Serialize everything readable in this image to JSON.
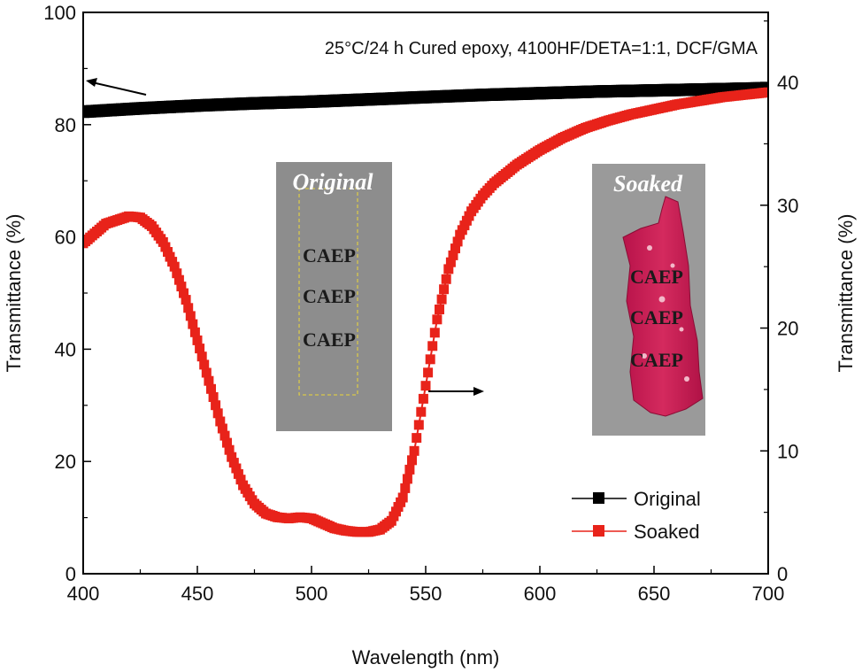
{
  "chart_data": {
    "type": "line",
    "annotation": "25°C/24 h Cured epoxy, 4100HF/DETA=1:1, DCF/GMA",
    "xlabel": "Wavelength (nm)",
    "ylabel_left": "Transmittance (%)",
    "ylabel_right": "Transmittance (%)",
    "xlim": [
      400,
      700
    ],
    "ylim_left": [
      0,
      100
    ],
    "ylim_right": [
      0,
      45.7
    ],
    "x_ticks": [
      "400",
      "450",
      "500",
      "550",
      "600",
      "650",
      "700"
    ],
    "y_left_ticks": [
      "0",
      "20",
      "40",
      "60",
      "80",
      "100"
    ],
    "y_right_ticks": [
      "0",
      "10",
      "20",
      "30",
      "40"
    ],
    "legend_position": "lower-right",
    "series": [
      {
        "name": "Original",
        "axis": "left",
        "color": "#000000",
        "x": [
          400,
          425,
          450,
          475,
          500,
          525,
          550,
          575,
          600,
          625,
          650,
          675,
          700
        ],
        "y": [
          82.3,
          82.9,
          83.4,
          83.8,
          84.1,
          84.5,
          84.9,
          85.3,
          85.6,
          85.9,
          86.1,
          86.3,
          86.5
        ]
      },
      {
        "name": "Soaked",
        "axis": "right",
        "color": "#e8231a",
        "x": [
          400,
          410,
          420,
          425,
          430,
          435,
          440,
          445,
          450,
          455,
          460,
          465,
          470,
          475,
          480,
          485,
          490,
          495,
          500,
          505,
          510,
          515,
          520,
          525,
          530,
          535,
          540,
          545,
          550,
          555,
          560,
          565,
          570,
          575,
          580,
          590,
          600,
          610,
          620,
          630,
          640,
          650,
          660,
          670,
          680,
          690,
          700
        ],
        "y": [
          26.9,
          28.5,
          29.1,
          29.0,
          28.3,
          27.0,
          25.0,
          22.3,
          19.0,
          15.7,
          12.4,
          9.5,
          7.2,
          5.7,
          4.9,
          4.6,
          4.5,
          4.6,
          4.5,
          4.1,
          3.7,
          3.5,
          3.4,
          3.4,
          3.6,
          4.3,
          6.2,
          10.0,
          15.3,
          20.7,
          24.8,
          27.6,
          29.5,
          30.8,
          31.8,
          33.3,
          34.5,
          35.5,
          36.3,
          36.9,
          37.4,
          37.8,
          38.2,
          38.5,
          38.8,
          39.0,
          39.2
        ]
      }
    ],
    "arrows": [
      {
        "points_to": "left",
        "x": 420,
        "y_left": 87
      },
      {
        "points_to": "right",
        "x": 550,
        "y_left": 36
      }
    ],
    "insets": [
      {
        "title": "Original",
        "labels": [
          "CAEP",
          "CAEP",
          "CAEP"
        ]
      },
      {
        "title": "Soaked",
        "labels": [
          "CAEP",
          "CAEP",
          "CAEP"
        ]
      }
    ]
  }
}
